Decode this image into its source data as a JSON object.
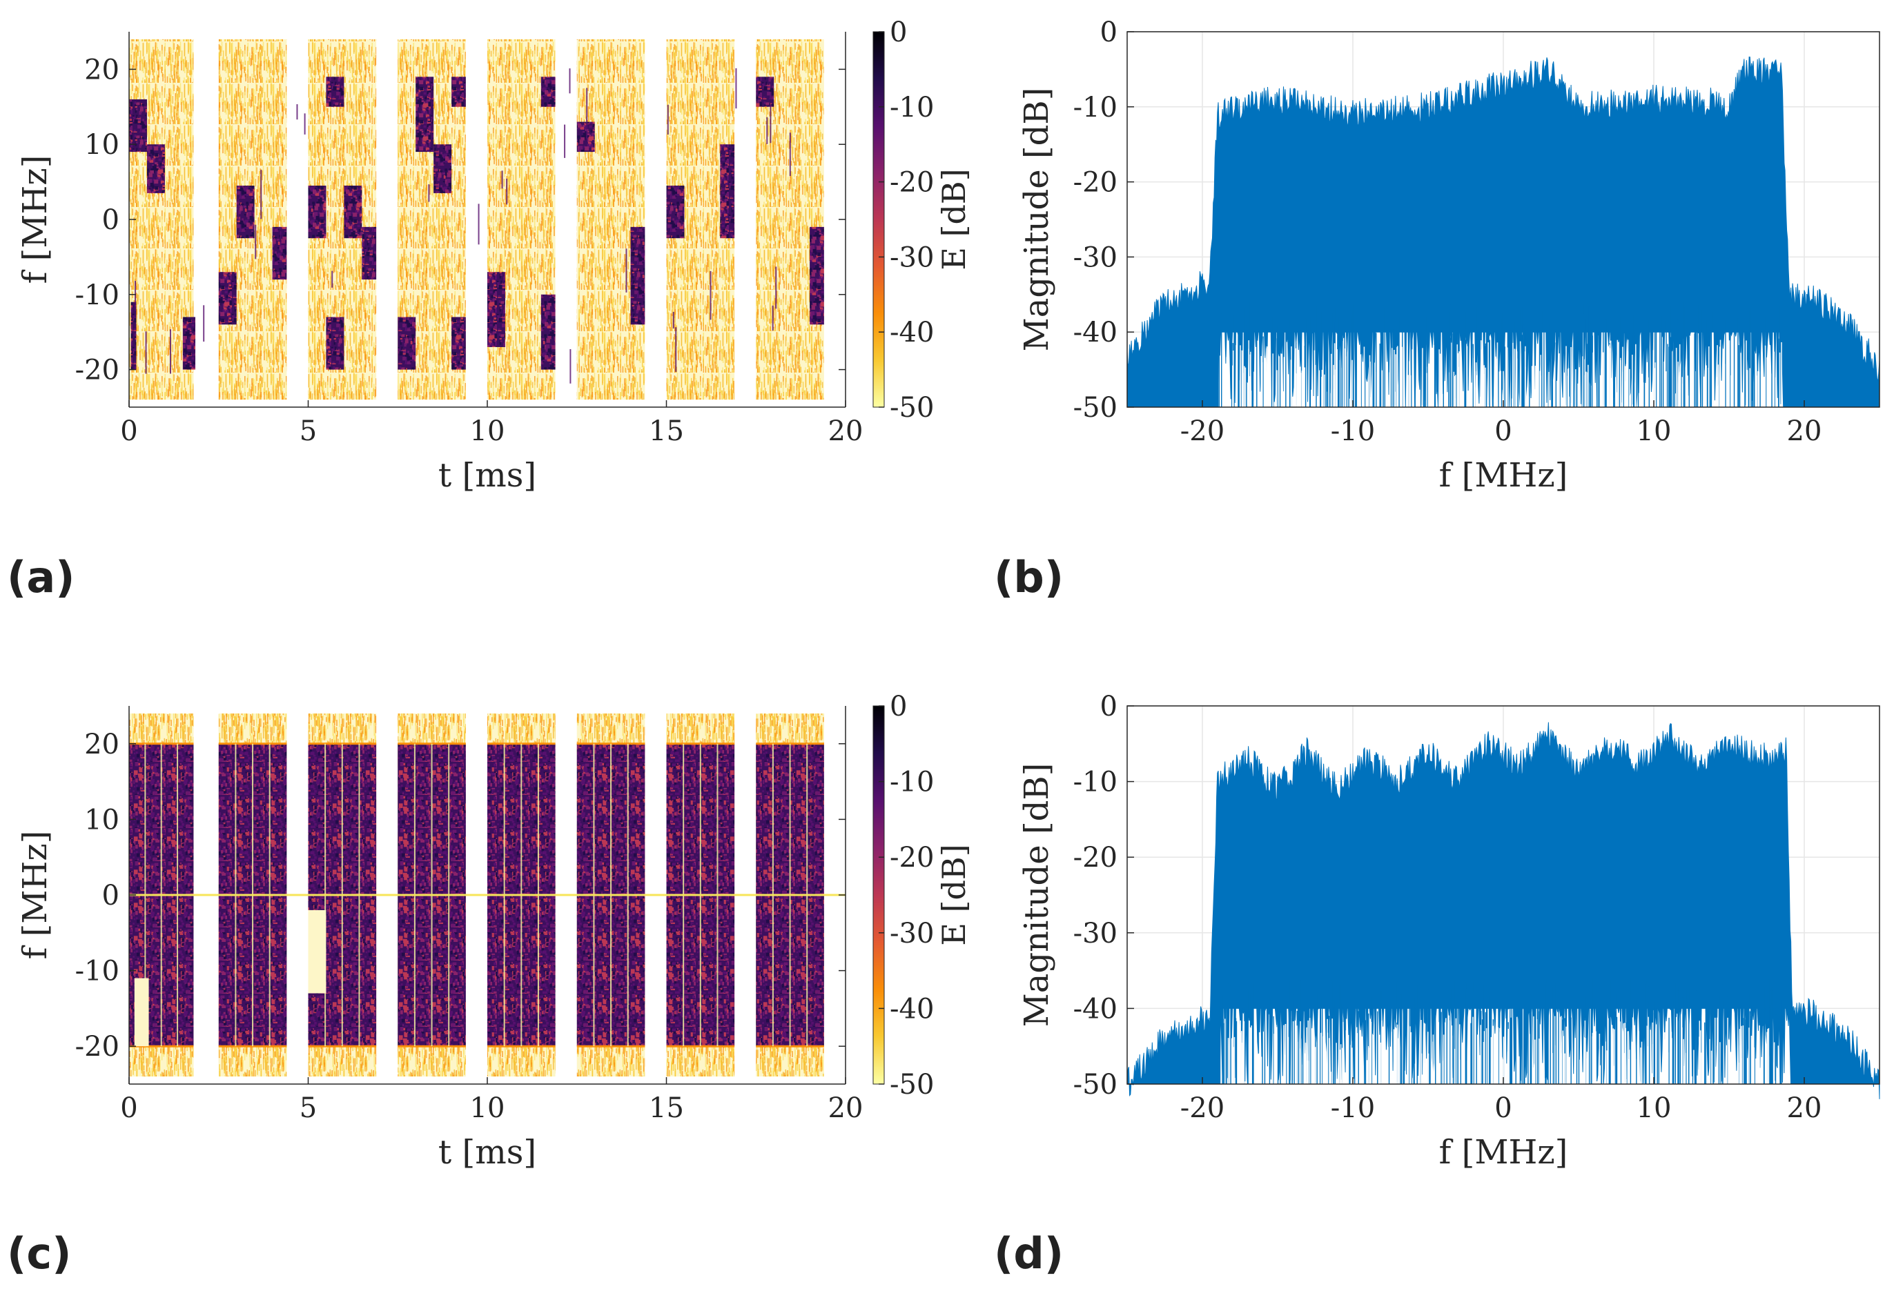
{
  "panels": [
    {
      "label": "(a)",
      "chart_data": {
        "type": "heatmap",
        "description": "spectrogram",
        "xlabel": "t [ms]",
        "ylabel": "f [MHz]",
        "xlim": [
          0,
          20
        ],
        "ylim": [
          -25,
          25
        ],
        "xticks": [
          0,
          5,
          10,
          15,
          20
        ],
        "yticks": [
          -20,
          -10,
          0,
          10,
          20
        ],
        "colorbar": {
          "label": "E [dB]",
          "range": [
            -50,
            0
          ],
          "ticks": [
            0,
            -10,
            -20,
            -30,
            -40,
            -50
          ],
          "colors": [
            "#fcffa4",
            "#f8c932",
            "#f98e09",
            "#e45a31",
            "#bc3754",
            "#8a226a",
            "#57106e",
            "#210c4a",
            "#000004"
          ]
        },
        "packets_ms": [
          [
            0,
            1.8
          ],
          [
            2.5,
            4.4
          ],
          [
            5.0,
            6.9
          ],
          [
            7.5,
            9.4
          ],
          [
            10.0,
            11.9
          ],
          [
            12.5,
            14.4
          ],
          [
            15.0,
            16.9
          ],
          [
            17.5,
            19.4
          ]
        ],
        "packet_band_mhz": [
          -24,
          24
        ],
        "bursts": [
          {
            "t": [
              0.0,
              0.5
            ],
            "f": [
              9,
              16
            ]
          },
          {
            "t": [
              0.5,
              1.0
            ],
            "f": [
              3.5,
              10
            ]
          },
          {
            "t": [
              0.05,
              0.2
            ],
            "f": [
              -20,
              -11
            ]
          },
          {
            "t": [
              1.5,
              1.85
            ],
            "f": [
              -20,
              -13
            ]
          },
          {
            "t": [
              2.5,
              3.0
            ],
            "f": [
              -14,
              -7
            ]
          },
          {
            "t": [
              3.0,
              3.5
            ],
            "f": [
              -2.5,
              4.5
            ]
          },
          {
            "t": [
              4.0,
              4.4
            ],
            "f": [
              -8,
              -1
            ]
          },
          {
            "t": [
              5.0,
              5.5
            ],
            "f": [
              -2.5,
              4.5
            ]
          },
          {
            "t": [
              5.5,
              6.0
            ],
            "f": [
              15,
              19
            ]
          },
          {
            "t": [
              5.5,
              6.0
            ],
            "f": [
              -20,
              -13
            ]
          },
          {
            "t": [
              6.0,
              6.5
            ],
            "f": [
              -2.5,
              4.5
            ]
          },
          {
            "t": [
              6.5,
              6.9
            ],
            "f": [
              -8,
              -1
            ]
          },
          {
            "t": [
              7.5,
              8.0
            ],
            "f": [
              -20,
              -13
            ]
          },
          {
            "t": [
              8.0,
              8.5
            ],
            "f": [
              9,
              19
            ]
          },
          {
            "t": [
              8.5,
              9.0
            ],
            "f": [
              3.5,
              10
            ]
          },
          {
            "t": [
              9.0,
              9.4
            ],
            "f": [
              15,
              19
            ]
          },
          {
            "t": [
              9.0,
              9.4
            ],
            "f": [
              -20,
              -13
            ]
          },
          {
            "t": [
              10.0,
              10.5
            ],
            "f": [
              -17,
              -7
            ]
          },
          {
            "t": [
              11.5,
              11.9
            ],
            "f": [
              -20,
              -10
            ]
          },
          {
            "t": [
              11.5,
              11.9
            ],
            "f": [
              15,
              19
            ]
          },
          {
            "t": [
              12.5,
              13.0
            ],
            "f": [
              9,
              13
            ]
          },
          {
            "t": [
              14.0,
              14.4
            ],
            "f": [
              -14,
              -1
            ]
          },
          {
            "t": [
              15.0,
              15.5
            ],
            "f": [
              -2.5,
              4.5
            ]
          },
          {
            "t": [
              16.5,
              16.9
            ],
            "f": [
              -2.5,
              10
            ]
          },
          {
            "t": [
              17.5,
              18.0
            ],
            "f": [
              15,
              19
            ]
          },
          {
            "t": [
              19.0,
              19.4
            ],
            "f": [
              -14,
              -1
            ]
          }
        ]
      }
    },
    {
      "label": "(b)",
      "chart_data": {
        "type": "area",
        "description": "magnitude spectrum",
        "xlabel": "f [MHz]",
        "ylabel": "Magnitude [dB]",
        "xlim": [
          -25,
          25
        ],
        "ylim": [
          -50,
          0
        ],
        "xticks": [
          -20,
          -10,
          0,
          10,
          20
        ],
        "yticks": [
          0,
          -10,
          -20,
          -30,
          -40,
          -50
        ],
        "color": "#0072bd",
        "envelope_top": {
          "f": [
            -25,
            -23,
            -21,
            -19.5,
            -19,
            -15,
            -10,
            -5,
            0,
            3,
            5,
            10,
            13,
            15,
            16,
            17,
            18.5,
            19,
            21,
            23,
            25
          ],
          "db": [
            -42,
            -35,
            -33,
            -31,
            -9,
            -7,
            -9,
            -8,
            -5,
            -3,
            -8,
            -7,
            -7,
            -8,
            -3,
            -3,
            -4,
            -33,
            -34,
            -37,
            -43
          ]
        },
        "envelope_bottom": {
          "f": [
            -25,
            -19,
            -18.9,
            18.5,
            18.6,
            25
          ],
          "db": [
            -50,
            -50,
            -40,
            -40,
            -50,
            -50
          ]
        }
      }
    },
    {
      "label": "(c)",
      "chart_data": {
        "type": "heatmap",
        "description": "spectrogram",
        "xlabel": "t [ms]",
        "ylabel": "f [MHz]",
        "xlim": [
          0,
          20
        ],
        "ylim": [
          -25,
          25
        ],
        "xticks": [
          0,
          5,
          10,
          15,
          20
        ],
        "yticks": [
          -20,
          -10,
          0,
          10,
          20
        ],
        "colorbar": {
          "label": "E [dB]",
          "range": [
            -50,
            0
          ],
          "ticks": [
            0,
            -10,
            -20,
            -30,
            -40,
            -50
          ],
          "colors": [
            "#fcffa4",
            "#f8c932",
            "#f98e09",
            "#e45a31",
            "#bc3754",
            "#8a226a",
            "#57106e",
            "#210c4a",
            "#000004"
          ]
        },
        "packets_ms": [
          [
            0,
            1.8
          ],
          [
            2.5,
            4.4
          ],
          [
            5.0,
            6.9
          ],
          [
            7.5,
            9.4
          ],
          [
            10.0,
            11.9
          ],
          [
            12.5,
            14.4
          ],
          [
            15.0,
            16.9
          ],
          [
            17.5,
            19.4
          ]
        ],
        "packet_band_mhz": [
          -24,
          24
        ],
        "signal_band_mhz": [
          -20,
          20
        ],
        "gaps": [
          {
            "t": [
              0.15,
              0.55
            ],
            "f": [
              -20,
              -11
            ]
          },
          {
            "t": [
              5.0,
              5.5
            ],
            "f": [
              -13,
              -2
            ]
          }
        ],
        "dc_line_mhz": 0
      }
    },
    {
      "label": "(d)",
      "chart_data": {
        "type": "area",
        "description": "magnitude spectrum",
        "xlabel": "f [MHz]",
        "ylabel": "Magnitude [dB]",
        "xlim": [
          -25,
          25
        ],
        "ylim": [
          -50,
          0
        ],
        "xticks": [
          -20,
          -10,
          0,
          10,
          20
        ],
        "yticks": [
          0,
          -10,
          -20,
          -30,
          -40,
          -50
        ],
        "color": "#0072bd",
        "envelope_top": {
          "f": [
            -25,
            -23,
            -21,
            -19.5,
            -19,
            -17,
            -15,
            -13,
            -11,
            -9,
            -7,
            -5,
            -3,
            -1,
            1,
            3,
            5,
            7,
            9,
            11,
            13,
            15,
            17,
            18.8,
            19.2,
            21,
            23,
            25
          ],
          "db": [
            -48,
            -43,
            -40,
            -39,
            -8,
            -5,
            -9,
            -4,
            -9,
            -5,
            -8,
            -4,
            -8,
            -3,
            -6,
            -2,
            -7,
            -3,
            -6,
            -2,
            -6,
            -3,
            -5,
            -4,
            -38,
            -39,
            -42,
            -48
          ]
        },
        "envelope_bottom": {
          "f": [
            -25,
            -19,
            -18.9,
            19,
            19.1,
            25
          ],
          "db": [
            -50,
            -50,
            -40,
            -40,
            -50,
            -50
          ]
        }
      }
    }
  ]
}
